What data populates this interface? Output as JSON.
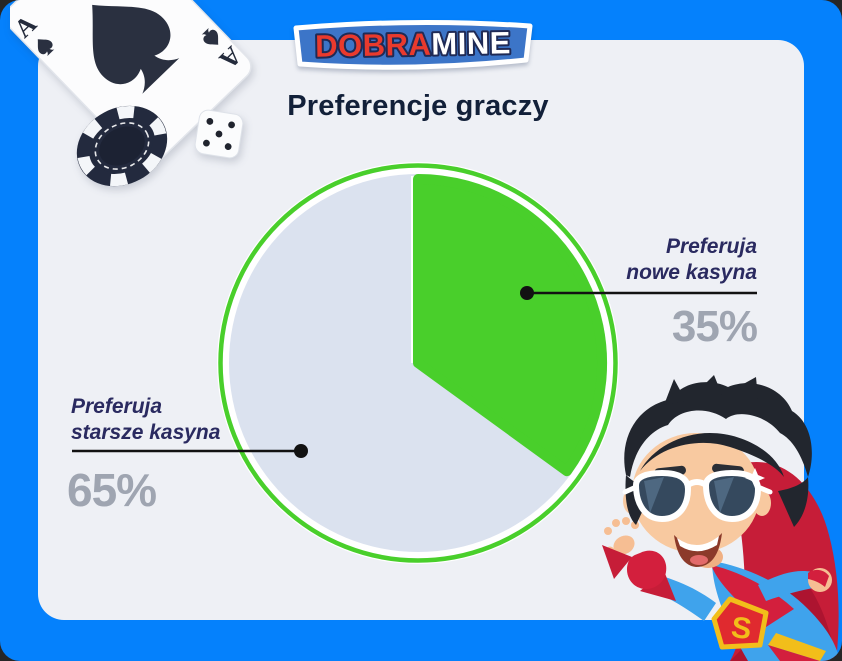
{
  "frame": {
    "background": "#0581FC",
    "card_background": "#EEF0F5",
    "outer_background": "#262626"
  },
  "logo": {
    "name": "DobraMine",
    "part1": "DOBRA",
    "part2": "MINE",
    "badge_color": "#3C75C8",
    "part1_color": "#E93A2D",
    "part2_color": "#FFFFFF"
  },
  "title": "Preferencje graczy",
  "chart_data": {
    "type": "pie",
    "title": "Preferencje graczy",
    "unit": "%",
    "start_angle_deg": 0,
    "direction": "clockwise",
    "legend_position": "callouts",
    "slices": [
      {
        "label": "Preferuja nowe kasyna",
        "value": 35,
        "color": "#49CF2B"
      },
      {
        "label": "Preferuja starsze kasyna",
        "value": 65,
        "color": "#DBE2EF"
      }
    ]
  },
  "callouts": {
    "nowe": {
      "line1": "Preferuja",
      "line2": "nowe kasyna",
      "value": "35%"
    },
    "starsze": {
      "line1": "Preferuja",
      "line2": "starsze kasyna",
      "value": "65%"
    }
  },
  "decorations": {
    "playing_card_rank": "A",
    "playing_card_suit": "spade",
    "dice_face": 5,
    "mascot_emblem_letter": "S"
  },
  "text_colors": {
    "title": "#122039",
    "label": "#2A2A60",
    "value": "#9FA5B1",
    "line": "#121212"
  }
}
